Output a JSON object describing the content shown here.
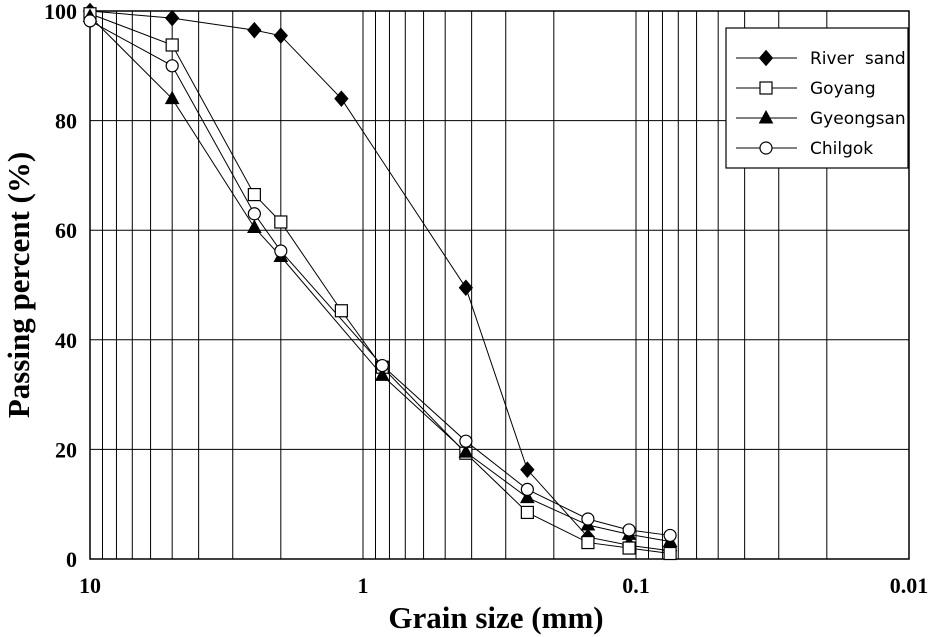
{
  "chart_data": {
    "type": "line",
    "title": "",
    "xlabel": "Grain size (mm)",
    "ylabel": "Passing percent (%)",
    "x_scale": "log",
    "x_reversed": true,
    "xlim": [
      10,
      0.01
    ],
    "ylim": [
      0,
      100
    ],
    "grid": true,
    "x_ticks": [
      {
        "value": 10,
        "label": "10"
      },
      {
        "value": 1,
        "label": "1"
      },
      {
        "value": 0.1,
        "label": "0.1"
      },
      {
        "value": 0.01,
        "label": "0.01"
      }
    ],
    "y_ticks": [
      {
        "value": 0,
        "label": "0"
      },
      {
        "value": 20,
        "label": "20"
      },
      {
        "value": 40,
        "label": "40"
      },
      {
        "value": 60,
        "label": "60"
      },
      {
        "value": 80,
        "label": "80"
      },
      {
        "value": 100,
        "label": "100"
      }
    ],
    "legend_position": "top-right",
    "series": [
      {
        "name": "River  sand",
        "marker": "diamond-filled",
        "x": [
          10,
          5,
          2.5,
          2,
          1.2,
          0.42,
          0.25,
          0.15,
          0.106,
          0.075
        ],
        "y": [
          100,
          98.7,
          96.5,
          95.5,
          84,
          49.5,
          16.3,
          4,
          2.5,
          1.5
        ]
      },
      {
        "name": "Goyang",
        "marker": "square-open",
        "x": [
          10,
          5,
          2.5,
          2,
          1.2,
          0.85,
          0.42,
          0.25,
          0.15,
          0.106,
          0.075
        ],
        "y": [
          99.5,
          93.8,
          66.5,
          61.5,
          45.3,
          35,
          19.3,
          8.5,
          3,
          2,
          1
        ]
      },
      {
        "name": "Gyeongsan",
        "marker": "triangle-filled",
        "x": [
          10,
          5,
          2.5,
          2,
          0.85,
          0.42,
          0.25,
          0.15,
          0.106,
          0.075
        ],
        "y": [
          99,
          84,
          60.5,
          55.2,
          33.5,
          19.5,
          11.2,
          6.2,
          4.5,
          3.2
        ]
      },
      {
        "name": "Chilgok",
        "marker": "circle-open",
        "x": [
          10,
          5,
          2.5,
          2,
          0.85,
          0.42,
          0.25,
          0.15,
          0.106,
          0.075
        ],
        "y": [
          98.2,
          90,
          63,
          56.2,
          35.3,
          21.5,
          12.7,
          7.3,
          5.3,
          4.3
        ]
      }
    ]
  }
}
